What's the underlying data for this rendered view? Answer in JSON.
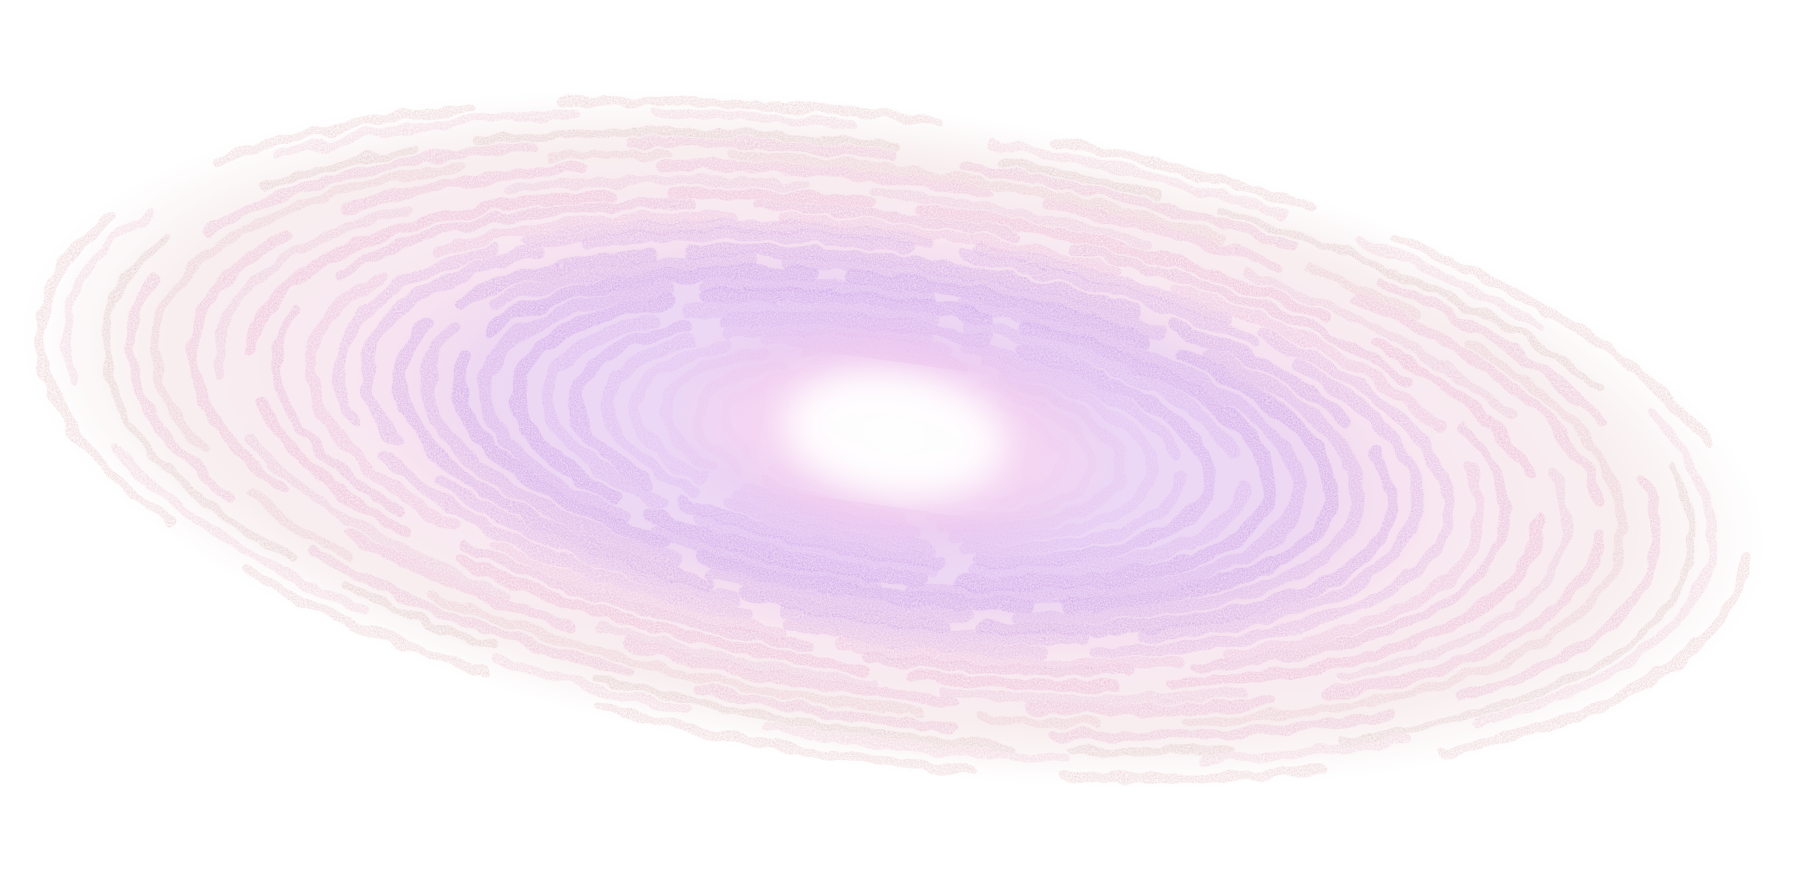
{
  "scene": {
    "subject": "spiral-galaxy",
    "background_color": "#ffffff"
  },
  "palette": {
    "core_white": "#fff6fb",
    "core_pink": "#f7c6ee",
    "inner_violet": "#b77ee6",
    "mid_lilac": "#c99be8",
    "arm_pink": "#e48fc0",
    "outer_rose": "#d9a0a8",
    "outer_dust": "#c89a96"
  }
}
